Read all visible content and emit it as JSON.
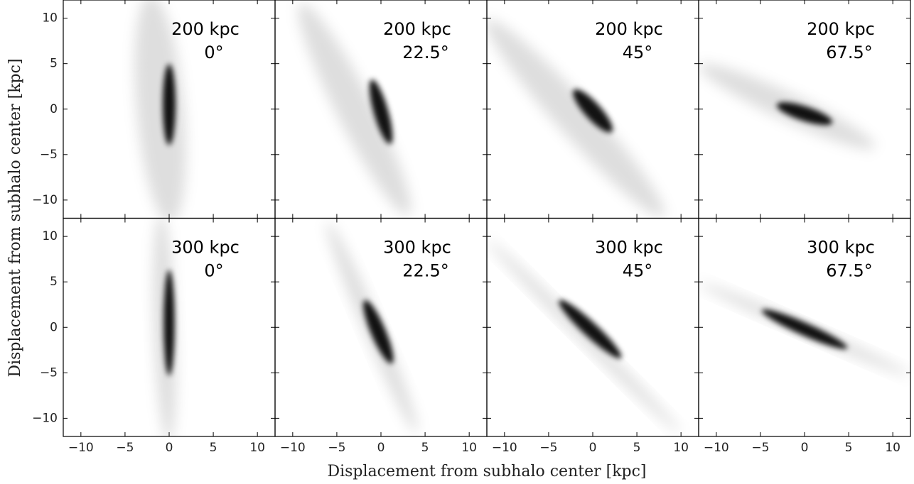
{
  "chart_data": {
    "type": "density",
    "xlabel": "Displacement from subhalo center [kpc]",
    "ylabel": "Displacement from subhalo center [kpc]",
    "xlim": [
      -12,
      12
    ],
    "ylim": [
      -12,
      12
    ],
    "xticks": [
      {
        "value": -10,
        "label": "−10"
      },
      {
        "value": -5,
        "label": "−5"
      },
      0,
      5,
      10
    ],
    "yticks": [
      {
        "value": -10,
        "label": "−10"
      },
      {
        "value": -5,
        "label": "−5"
      },
      0,
      5,
      10
    ],
    "color": "#000000",
    "panels": [
      {
        "distance": "200 kpc",
        "angle": "0°"
      },
      {
        "distance": "200 kpc",
        "angle": "22.5°"
      },
      {
        "distance": "200 kpc",
        "angle": "45°"
      },
      {
        "distance": "200 kpc",
        "angle": "67.5°"
      },
      {
        "distance": "300 kpc",
        "angle": "0°"
      },
      {
        "distance": "300 kpc",
        "angle": "22.5°"
      },
      {
        "distance": "300 kpc",
        "angle": "45°"
      },
      {
        "distance": "300 kpc",
        "angle": "67.5°"
      }
    ]
  }
}
